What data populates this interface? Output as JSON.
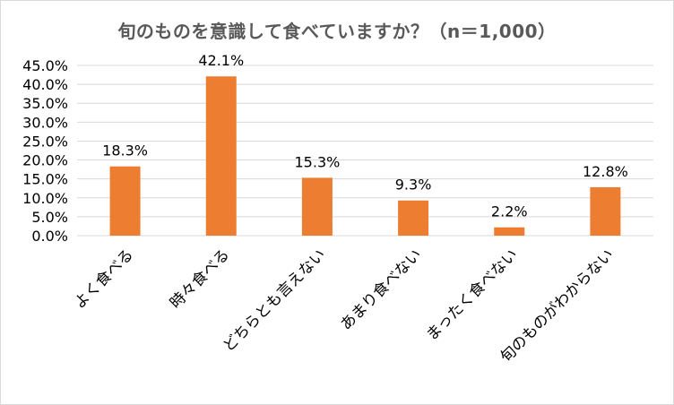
{
  "chart_data": {
    "type": "bar",
    "title": "旬のものを意識して食べていますか？（n＝1,000）",
    "categories": [
      "よく食べる",
      "時々食べる",
      "どちらとも言えない",
      "あまり食べない",
      "まったく食べない",
      "旬のものがわからない"
    ],
    "values": [
      18.3,
      42.1,
      15.3,
      9.3,
      2.2,
      12.8
    ],
    "data_labels": [
      "18.3%",
      "42.1%",
      "15.3%",
      "9.3%",
      "2.2%",
      "12.8%"
    ],
    "y_ticks": [
      "0.0%",
      "5.0%",
      "10.0%",
      "15.0%",
      "20.0%",
      "25.0%",
      "30.0%",
      "35.0%",
      "40.0%",
      "45.0%"
    ],
    "ylim": [
      0,
      45
    ],
    "xlabel": "",
    "ylabel": "",
    "grid": true,
    "legend": "none",
    "bar_color": "#ed7d31",
    "grid_color": "#d9d9d9",
    "title_color": "#595959"
  }
}
